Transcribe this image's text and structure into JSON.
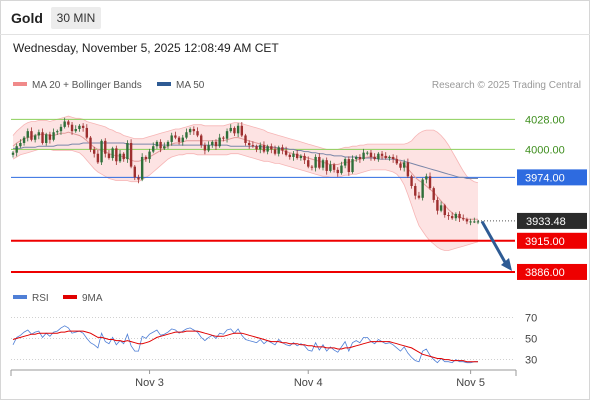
{
  "header": {
    "instrument": "Gold",
    "timeframe": "30 MIN"
  },
  "timestamp": "Wednesday, November 5, 2025 12:08:49 AM CET",
  "legend": {
    "bollinger": {
      "label": "MA 20 + Bollinger Bands",
      "color": "#f08a8a"
    },
    "ma50": {
      "label": "MA 50",
      "color": "#2e5b94"
    },
    "rsi": {
      "label": "RSI",
      "color": "#4f7fd6"
    },
    "rsi_ma": {
      "label": "9MA",
      "color": "#e00000"
    }
  },
  "credit": "Research © 2025 Trading Central",
  "colors": {
    "up": "#2f6f3a",
    "down": "#9e2f2f",
    "resistance": "#8ccf5a",
    "support": "#ee0000",
    "pivot": "#2e6be0",
    "arrow": "#2e5b94",
    "band_fill": "#fde3e3"
  },
  "chart_data": [
    {
      "type": "candlestick",
      "title": "Gold 30 MIN",
      "x_ticks": [
        "Nov 3",
        "Nov 4",
        "Nov 5"
      ],
      "ylim": [
        3872,
        4046
      ],
      "last_price": {
        "value": 3933.48,
        "label": "3933.48"
      },
      "levels": [
        {
          "value": 4028.0,
          "label": "4028.00",
          "kind": "resistance"
        },
        {
          "value": 4000.0,
          "label": "4000.00",
          "kind": "resistance"
        },
        {
          "value": 3974.0,
          "label": "3974.00",
          "kind": "pivot"
        },
        {
          "value": 3915.0,
          "label": "3915.00",
          "kind": "support"
        },
        {
          "value": 3886.0,
          "label": "3886.00",
          "kind": "support"
        }
      ],
      "forecast": {
        "from": 3933,
        "to": 3886,
        "direction": "down"
      },
      "close": [
        3997,
        4003,
        4006,
        4011,
        4017,
        4009,
        4013,
        4016,
        4006,
        4014,
        4009,
        4016,
        4017,
        4021,
        4026,
        4023,
        4017,
        4019,
        4022,
        4020,
        4011,
        4000,
        3996,
        3988,
        4008,
        3996,
        3992,
        4001,
        3989,
        3996,
        3991,
        4006,
        3984,
        3974,
        3972,
        3993,
        3991,
        3998,
        4003,
        4007,
        4001,
        4003,
        4007,
        4013,
        4011,
        4007,
        4011,
        4016,
        4019,
        4017,
        4013,
        4004,
        3999,
        4004,
        4007,
        4003,
        4011,
        4010,
        4017,
        4020,
        4015,
        4022,
        4013,
        4006,
        4004,
        4003,
        4000,
        4004,
        3998,
        4003,
        4000,
        3996,
        4002,
        3999,
        3995,
        3993,
        3996,
        3992,
        3994,
        3990,
        3984,
        3983,
        3993,
        3983,
        3990,
        3980,
        3986,
        3981,
        3978,
        3985,
        3991,
        3979,
        3991,
        3993,
        3991,
        3997,
        3997,
        3993,
        3991,
        3996,
        3994,
        3992,
        3993,
        3991,
        3987,
        3983,
        3988,
        3975,
        3966,
        3957,
        3955,
        3972,
        3975,
        3964,
        3953,
        3943,
        3948,
        3939,
        3938,
        3936,
        3940,
        3936,
        3935,
        3933,
        3933,
        3933,
        3933
      ],
      "ma20": [
        4003,
        4006,
        4008,
        4010,
        4011,
        4012,
        4013,
        4014,
        4014,
        4014,
        4013,
        4013,
        4014,
        4015,
        4015,
        4016,
        4015,
        4014,
        4013,
        4011,
        4008,
        4005,
        4002,
        4000,
        3999,
        3998,
        3996,
        3995,
        3994,
        3994,
        3993,
        3992,
        3990,
        3989,
        3989,
        3990,
        3991,
        3993,
        3995,
        3997,
        3999,
        4001,
        4003,
        4005,
        4006,
        4006,
        4007,
        4008,
        4008,
        4008,
        4008,
        4008,
        4008,
        4008,
        4008,
        4008,
        4008,
        4008,
        4009,
        4010,
        4011,
        4011,
        4010,
        4009,
        4008,
        4007,
        4006,
        4005,
        4004,
        4003,
        4002,
        4001,
        4000,
        3999,
        3998,
        3997,
        3996,
        3995,
        3994,
        3993,
        3992,
        3991,
        3990,
        3989,
        3988,
        3987,
        3986,
        3986,
        3986,
        3987,
        3988,
        3988,
        3989,
        3990,
        3991,
        3992,
        3993,
        3993,
        3993,
        3993,
        3993,
        3993,
        3993,
        3992,
        3991,
        3989,
        3986,
        3982,
        3978,
        3974,
        3971,
        3969,
        3966,
        3963,
        3960,
        3956,
        3952,
        3948,
        3944,
        3941,
        3938,
        3937,
        3936,
        3935,
        3935,
        3935,
        3935
      ],
      "bb_upper": [
        4013,
        4017,
        4020,
        4023,
        4025,
        4026,
        4026,
        4027,
        4027,
        4027,
        4026,
        4027,
        4028,
        4029,
        4030,
        4031,
        4030,
        4029,
        4029,
        4028,
        4026,
        4025,
        4024,
        4023,
        4022,
        4021,
        4019,
        4018,
        4016,
        4015,
        4013,
        4012,
        4011,
        4010,
        4010,
        4010,
        4011,
        4012,
        4013,
        4014,
        4015,
        4016,
        4017,
        4018,
        4019,
        4019,
        4020,
        4021,
        4022,
        4023,
        4023,
        4023,
        4022,
        4022,
        4022,
        4022,
        4022,
        4022,
        4023,
        4024,
        4025,
        4025,
        4024,
        4023,
        4022,
        4021,
        4020,
        4019,
        4018,
        4016,
        4015,
        4014,
        4013,
        4012,
        4011,
        4010,
        4009,
        4008,
        4007,
        4006,
        4005,
        4004,
        4003,
        4002,
        4001,
        4000,
        4000,
        4000,
        4000,
        4001,
        4002,
        4002,
        4003,
        4003,
        4004,
        4004,
        4005,
        4005,
        4005,
        4005,
        4005,
        4005,
        4005,
        4005,
        4005,
        4005,
        4005,
        4006,
        4008,
        4012,
        4015,
        4017,
        4018,
        4018,
        4018,
        4016,
        4013,
        4009,
        4004,
        3998,
        3992,
        3986,
        3980,
        3975,
        3972,
        3970,
        3969
      ],
      "bb_lower": [
        3991,
        3993,
        3995,
        3996,
        3997,
        3998,
        3999,
        4000,
        4000,
        4000,
        4000,
        3999,
        3999,
        3999,
        3999,
        3999,
        3999,
        3998,
        3997,
        3994,
        3990,
        3986,
        3982,
        3979,
        3977,
        3975,
        3973,
        3972,
        3971,
        3971,
        3971,
        3971,
        3970,
        3970,
        3970,
        3972,
        3974,
        3976,
        3979,
        3982,
        3985,
        3988,
        3991,
        3993,
        3994,
        3995,
        3995,
        3996,
        3996,
        3996,
        3995,
        3995,
        3995,
        3995,
        3995,
        3995,
        3995,
        3995,
        3995,
        3996,
        3996,
        3996,
        3995,
        3994,
        3993,
        3992,
        3991,
        3990,
        3989,
        3989,
        3988,
        3987,
        3987,
        3986,
        3985,
        3984,
        3983,
        3982,
        3981,
        3980,
        3979,
        3978,
        3977,
        3976,
        3975,
        3975,
        3974,
        3974,
        3974,
        3975,
        3976,
        3976,
        3977,
        3977,
        3978,
        3979,
        3980,
        3981,
        3981,
        3981,
        3981,
        3981,
        3980,
        3979,
        3977,
        3973,
        3967,
        3958,
        3948,
        3938,
        3929,
        3924,
        3919,
        3915,
        3912,
        3909,
        3907,
        3906,
        3906,
        3907,
        3908,
        3909,
        3910,
        3911,
        3912,
        3913,
        3914
      ],
      "ma50": [
        4001,
        4001,
        4001,
        4002,
        4002,
        4002,
        4002,
        4003,
        4003,
        4003,
        4003,
        4003,
        4004,
        4004,
        4004,
        4004,
        4005,
        4005,
        4005,
        4006,
        4006,
        4006,
        4006,
        4006,
        4006,
        4006,
        4006,
        4006,
        4006,
        4006,
        4006,
        4005,
        4005,
        4005,
        4005,
        4005,
        4005,
        4005,
        4005,
        4004,
        4004,
        4004,
        4004,
        4004,
        4004,
        4004,
        4004,
        4004,
        4004,
        4004,
        4004,
        4004,
        4004,
        4004,
        4004,
        4004,
        4004,
        4004,
        4004,
        4003,
        4003,
        4003,
        4003,
        4003,
        4003,
        4003,
        4003,
        4003,
        4002,
        4002,
        4002,
        4002,
        4001,
        4001,
        4001,
        4000,
        4000,
        3999,
        3999,
        3998,
        3998,
        3997,
        3997,
        3996,
        3996,
        3995,
        3995,
        3994,
        3994,
        3994,
        3993,
        3993,
        3993,
        3993,
        3992,
        3992,
        3992,
        3992,
        3992,
        3991,
        3991,
        3991,
        3991,
        3991,
        3990,
        3990,
        3989,
        3988,
        3987,
        3986,
        3985,
        3984,
        3983,
        3982,
        3981,
        3980,
        3979,
        3978,
        3977,
        3976,
        3975,
        3974,
        3974,
        3973,
        3973,
        3973,
        3973
      ]
    },
    {
      "type": "line",
      "title": "RSI",
      "y_ticks": [
        30,
        50,
        70
      ],
      "ylim": [
        22,
        76
      ],
      "series": [
        {
          "name": "RSI",
          "values": [
            44,
            51,
            53,
            56,
            58,
            54,
            56,
            57,
            51,
            55,
            52,
            56,
            57,
            60,
            62,
            60,
            55,
            56,
            57,
            55,
            50,
            46,
            44,
            41,
            55,
            47,
            45,
            51,
            44,
            48,
            45,
            54,
            43,
            38,
            38,
            52,
            50,
            54,
            56,
            58,
            53,
            54,
            56,
            59,
            58,
            55,
            57,
            59,
            60,
            58,
            56,
            51,
            48,
            51,
            53,
            50,
            55,
            54,
            58,
            59,
            55,
            59,
            53,
            49,
            48,
            47,
            46,
            49,
            45,
            48,
            46,
            44,
            49,
            46,
            44,
            43,
            46,
            43,
            45,
            43,
            39,
            38,
            46,
            39,
            44,
            38,
            42,
            39,
            37,
            42,
            47,
            38,
            46,
            48,
            46,
            51,
            51,
            47,
            45,
            49,
            47,
            45,
            46,
            44,
            41,
            38,
            42,
            36,
            32,
            29,
            28,
            38,
            40,
            34,
            30,
            27,
            31,
            28,
            28,
            27,
            30,
            28,
            28,
            27,
            27,
            28,
            28
          ]
        },
        {
          "name": "9MA",
          "values": [
            49,
            50,
            51,
            52,
            53,
            54,
            54,
            55,
            55,
            55,
            55,
            55,
            55,
            56,
            56,
            57,
            57,
            57,
            57,
            57,
            56,
            55,
            53,
            51,
            51,
            50,
            49,
            49,
            48,
            48,
            47,
            48,
            47,
            46,
            45,
            45,
            46,
            47,
            49,
            51,
            52,
            53,
            54,
            55,
            56,
            56,
            56,
            57,
            57,
            57,
            57,
            56,
            55,
            54,
            53,
            52,
            52,
            52,
            53,
            54,
            55,
            55,
            55,
            54,
            53,
            52,
            51,
            50,
            49,
            48,
            47,
            47,
            47,
            46,
            46,
            45,
            45,
            45,
            44,
            44,
            43,
            43,
            42,
            42,
            42,
            41,
            41,
            41,
            40,
            40,
            41,
            41,
            42,
            43,
            44,
            45,
            46,
            47,
            47,
            47,
            47,
            47,
            47,
            46,
            45,
            44,
            43,
            42,
            41,
            39,
            37,
            35,
            34,
            33,
            32,
            31,
            31,
            30,
            30,
            29,
            29,
            29,
            29,
            28,
            28,
            28,
            28
          ]
        }
      ]
    }
  ]
}
